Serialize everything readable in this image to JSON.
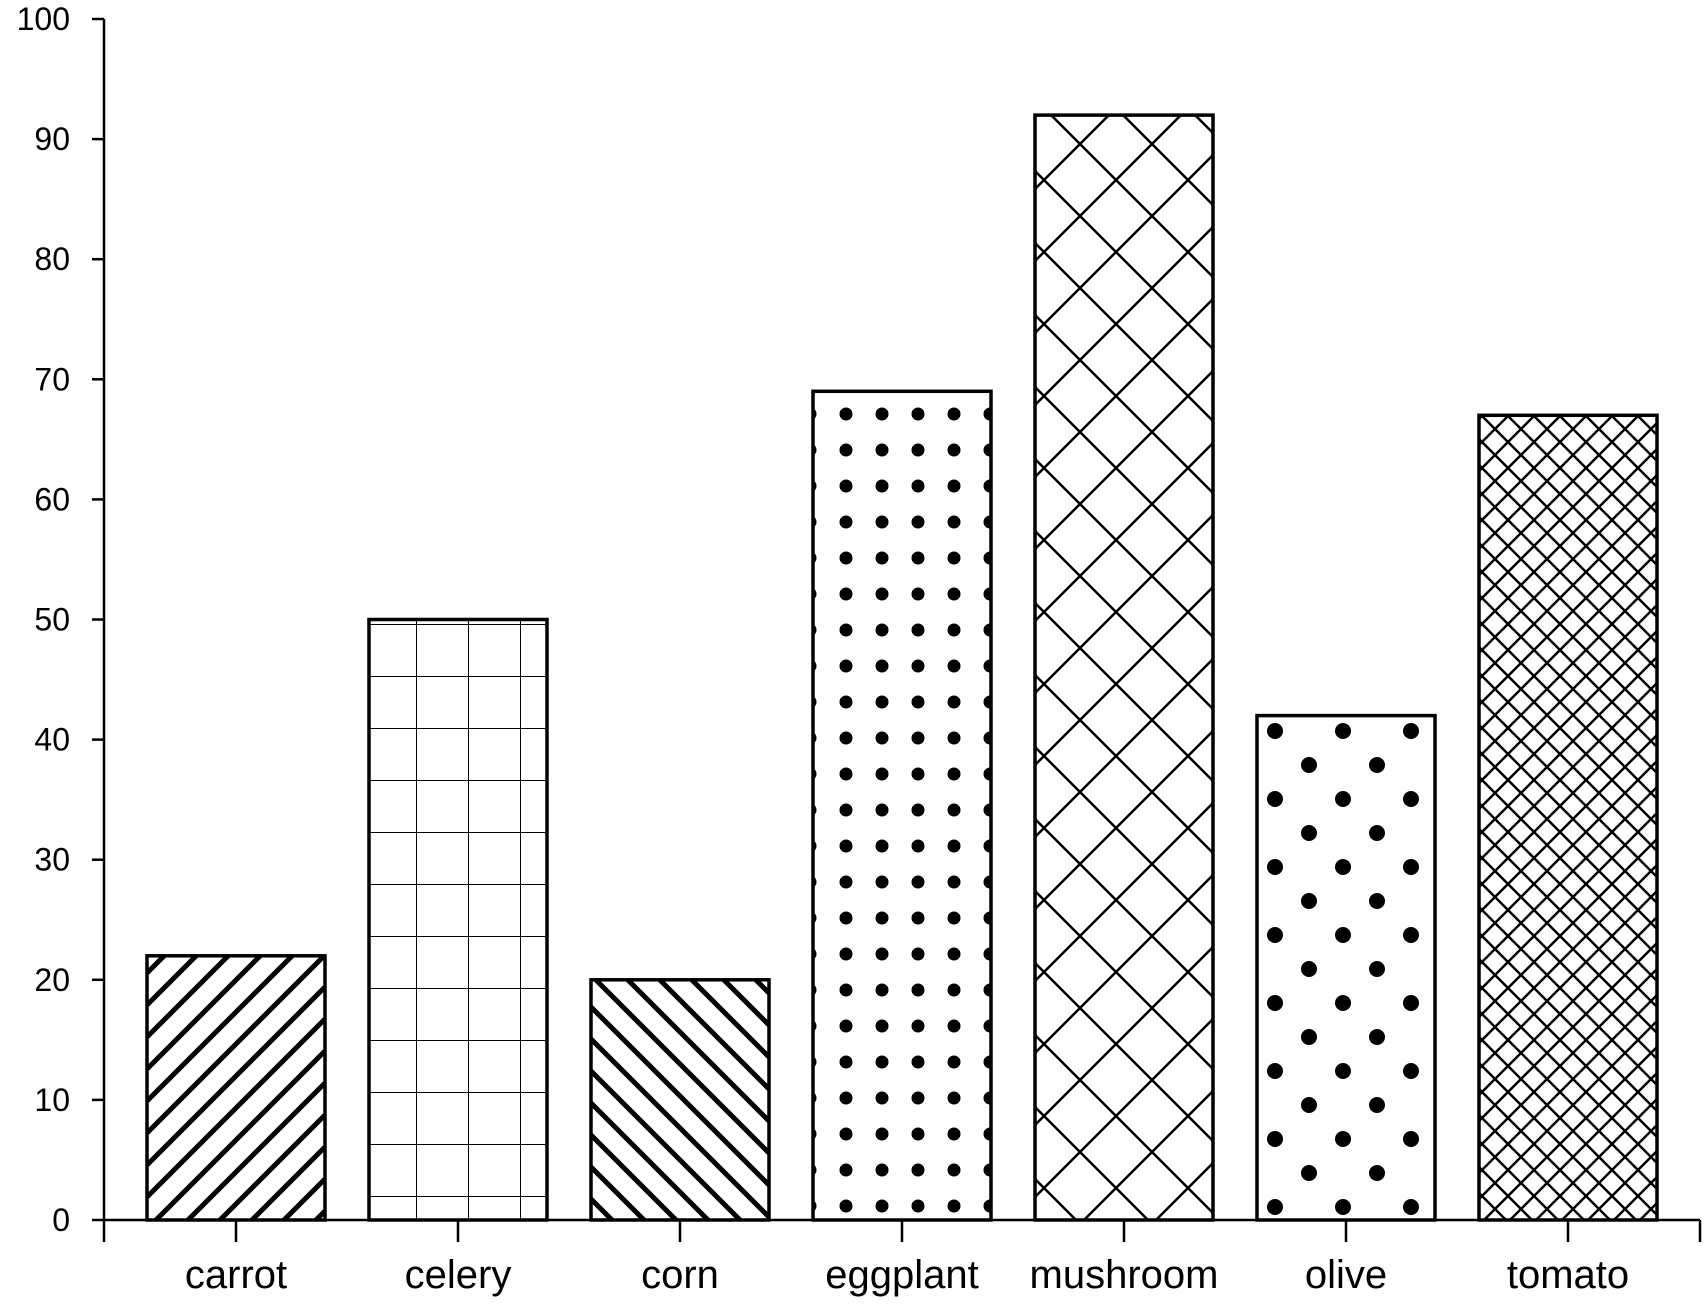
{
  "chart_data": {
    "type": "bar",
    "title": "",
    "xlabel": "",
    "ylabel": "",
    "categories": [
      "carrot",
      "celery",
      "corn",
      "eggplant",
      "mushroom",
      "olive",
      "tomato"
    ],
    "values": [
      22,
      50,
      20,
      69,
      92,
      42,
      67
    ],
    "patterns": [
      "diagonal-up",
      "grid",
      "diagonal-down",
      "small-dots",
      "large-crosshatch",
      "large-dots",
      "small-crosshatch"
    ],
    "ylim": [
      0,
      100
    ],
    "yticks": [
      0,
      10,
      20,
      30,
      40,
      50,
      60,
      70,
      80,
      90,
      100
    ],
    "ytick_labels": [
      "0",
      "10",
      "20",
      "30",
      "40",
      "50",
      "60",
      "70",
      "80",
      "90",
      "100"
    ],
    "grid": false,
    "legend": "none",
    "colors": {
      "bar_fill": "#ffffff",
      "bar_stroke": "#000000",
      "axis": "#000000"
    }
  }
}
